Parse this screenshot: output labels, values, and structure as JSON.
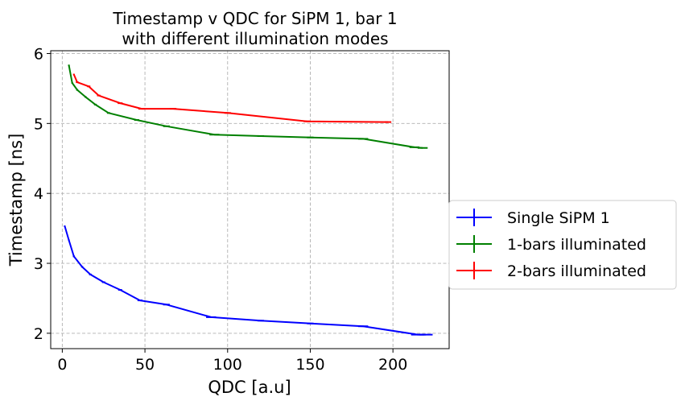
{
  "chart_data": {
    "type": "line",
    "title_lines": [
      "Timestamp v QDC for SiPM 1, bar 1",
      "with different illumination modes"
    ],
    "xlabel": "QDC [a.u]",
    "ylabel": "Timestamp [ns]",
    "xlim": [
      -7,
      234
    ],
    "ylim": [
      1.78,
      6.04
    ],
    "x_ticks": [
      0,
      50,
      100,
      150,
      200
    ],
    "y_ticks": [
      2,
      3,
      4,
      5,
      6
    ],
    "grid": true,
    "grid_style": "dashed",
    "legend_position": "outside-right",
    "series": [
      {
        "name": "Single SiPM 1",
        "color": "#0000ff",
        "x": [
          1.5,
          4,
          7,
          12,
          17,
          25,
          35,
          47,
          63,
          90,
          120,
          150,
          182,
          215,
          220
        ],
        "y": [
          3.53,
          3.33,
          3.1,
          2.95,
          2.84,
          2.73,
          2.62,
          2.47,
          2.41,
          2.23,
          2.18,
          2.14,
          2.1,
          1.98,
          1.98
        ],
        "xerr": [
          0.5,
          0.5,
          0.6,
          0.6,
          0.8,
          1,
          1.2,
          1.5,
          2,
          3,
          2,
          2,
          3,
          4,
          4
        ]
      },
      {
        "name": "1-bars illuminated",
        "color": "#008000",
        "x": [
          4,
          6,
          9,
          14,
          20,
          28,
          45,
          63,
          92,
          120,
          150,
          182,
          213,
          218
        ],
        "y": [
          5.83,
          5.58,
          5.48,
          5.38,
          5.27,
          5.15,
          5.05,
          4.96,
          4.84,
          4.82,
          4.8,
          4.78,
          4.66,
          4.65
        ],
        "xerr": [
          0.5,
          0.5,
          0.6,
          0.6,
          0.8,
          1,
          1.5,
          2,
          3,
          2,
          2,
          3,
          3,
          3
        ]
      },
      {
        "name": "2-bars illuminated",
        "color": "#ff0000",
        "x": [
          7,
          9,
          16,
          22,
          35,
          48,
          67,
          100,
          148,
          197
        ],
        "y": [
          5.7,
          5.59,
          5.53,
          5.4,
          5.29,
          5.21,
          5.21,
          5.15,
          5.03,
          5.02
        ],
        "xerr": [
          0.5,
          0.8,
          1,
          1,
          1.5,
          2,
          2,
          2,
          2,
          2
        ]
      }
    ]
  }
}
